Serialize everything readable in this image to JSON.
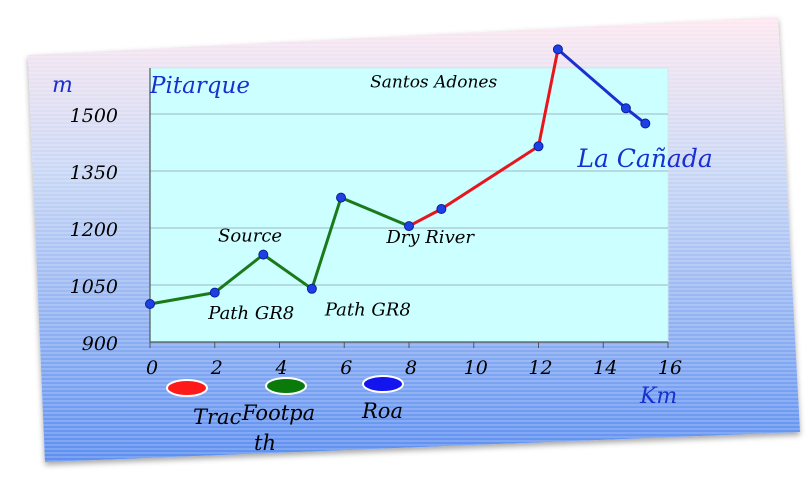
{
  "chart_data": {
    "type": "line",
    "y_unit": "m",
    "x_unit": "Km",
    "ylim": [
      900,
      1600
    ],
    "xlim": [
      0,
      16
    ],
    "y_ticks": [
      "900",
      "1050",
      "1200",
      "1350",
      "1500"
    ],
    "x_ticks": [
      "0",
      "2",
      "4",
      "6",
      "8",
      "10",
      "12",
      "14",
      "16"
    ],
    "grid": true,
    "points": [
      {
        "x": 0,
        "y": 1000,
        "type": "Footpath"
      },
      {
        "x": 2,
        "y": 1030,
        "type": "Footpath"
      },
      {
        "x": 3.5,
        "y": 1130,
        "type": "Footpath"
      },
      {
        "x": 5,
        "y": 1040,
        "type": "Footpath"
      },
      {
        "x": 5.9,
        "y": 1280,
        "type": "Footpath"
      },
      {
        "x": 8,
        "y": 1205,
        "type": "Footpath"
      },
      {
        "x": 9,
        "y": 1250,
        "type": "Track"
      },
      {
        "x": 12,
        "y": 1415,
        "type": "Track"
      },
      {
        "x": 12.6,
        "y": 1670,
        "type": "Track"
      },
      {
        "x": 14.7,
        "y": 1515,
        "type": "Road"
      },
      {
        "x": 15.3,
        "y": 1475,
        "type": "Road"
      }
    ],
    "annotations": [
      {
        "text": "Pitarque",
        "x": 0,
        "y": 1555,
        "anchor": "start",
        "size": 23,
        "color": "#1a2fd0"
      },
      {
        "text": "Santos Adones",
        "x": 6.8,
        "y": 1570,
        "anchor": "start",
        "size": 17,
        "color": "#000000"
      },
      {
        "text": "La Cañada",
        "x": 13.2,
        "y": 1360,
        "anchor": "start",
        "size": 25,
        "color": "#1a2fd0"
      },
      {
        "text": "Source",
        "x": 2.1,
        "y": 1165,
        "anchor": "start",
        "size": 18,
        "color": "#000000"
      },
      {
        "text": "Dry River",
        "x": 7.3,
        "y": 1160,
        "anchor": "start",
        "size": 18,
        "color": "#000000"
      },
      {
        "text": "Path GR8",
        "x": 1.8,
        "y": 960,
        "anchor": "start",
        "size": 18,
        "color": "#000000"
      },
      {
        "text": "Path GR8",
        "x": 5.4,
        "y": 970,
        "anchor": "start",
        "size": 18,
        "color": "#000000"
      }
    ],
    "legend": [
      {
        "label": "Trac",
        "color": "#ff1a1a"
      },
      {
        "label": "Footpa th",
        "color": "#0a7a0a"
      },
      {
        "label": "Roa",
        "color": "#1414ee"
      }
    ],
    "colors": {
      "Track": "#e8161c",
      "Footpath": "#1a7a1a",
      "Road": "#1c2fd0",
      "marker": "#1e3fe6",
      "plot_bg": "#ccffff",
      "axis_text": "#000000",
      "accent_text": "#1a2fd0"
    }
  }
}
